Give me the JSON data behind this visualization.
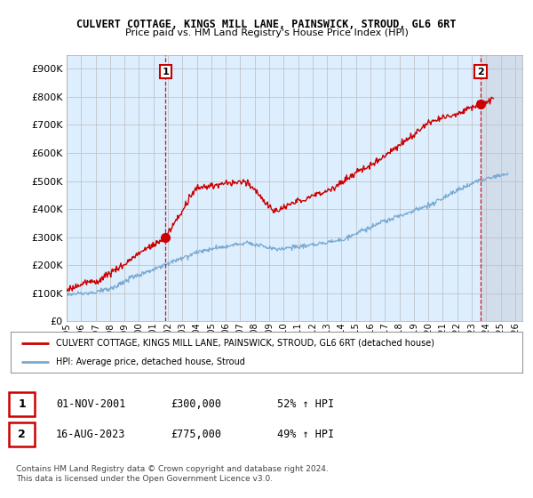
{
  "title": "CULVERT COTTAGE, KINGS MILL LANE, PAINSWICK, STROUD, GL6 6RT",
  "subtitle": "Price paid vs. HM Land Registry's House Price Index (HPI)",
  "ylabel_ticks": [
    "£0",
    "£100K",
    "£200K",
    "£300K",
    "£400K",
    "£500K",
    "£600K",
    "£700K",
    "£800K",
    "£900K"
  ],
  "ytick_values": [
    0,
    100000,
    200000,
    300000,
    400000,
    500000,
    600000,
    700000,
    800000,
    900000
  ],
  "ylim": [
    0,
    950000
  ],
  "xlim_start": 1995.0,
  "xlim_end": 2026.5,
  "red_line_color": "#cc0000",
  "blue_line_color": "#7aaad0",
  "plot_bg_color": "#ddeeff",
  "marker1_date": 2001.83,
  "marker1_y": 300000,
  "marker1_label": "1",
  "marker2_date": 2023.62,
  "marker2_y": 775000,
  "marker2_label": "2",
  "vline1_x": 2001.83,
  "vline2_x": 2023.62,
  "legend_line1": "CULVERT COTTAGE, KINGS MILL LANE, PAINSWICK, STROUD, GL6 6RT (detached house)",
  "legend_line2": "HPI: Average price, detached house, Stroud",
  "table_rows": [
    {
      "num": "1",
      "date": "01-NOV-2001",
      "price": "£300,000",
      "hpi": "52% ↑ HPI"
    },
    {
      "num": "2",
      "date": "16-AUG-2023",
      "price": "£775,000",
      "hpi": "49% ↑ HPI"
    }
  ],
  "footnote": "Contains HM Land Registry data © Crown copyright and database right 2024.\nThis data is licensed under the Open Government Licence v3.0.",
  "background_color": "#ffffff",
  "grid_color": "#bbbbbb",
  "shaded_region_start": 2023.62,
  "shaded_region_end": 2026.5,
  "shaded_region_color": "#c0c0c8"
}
